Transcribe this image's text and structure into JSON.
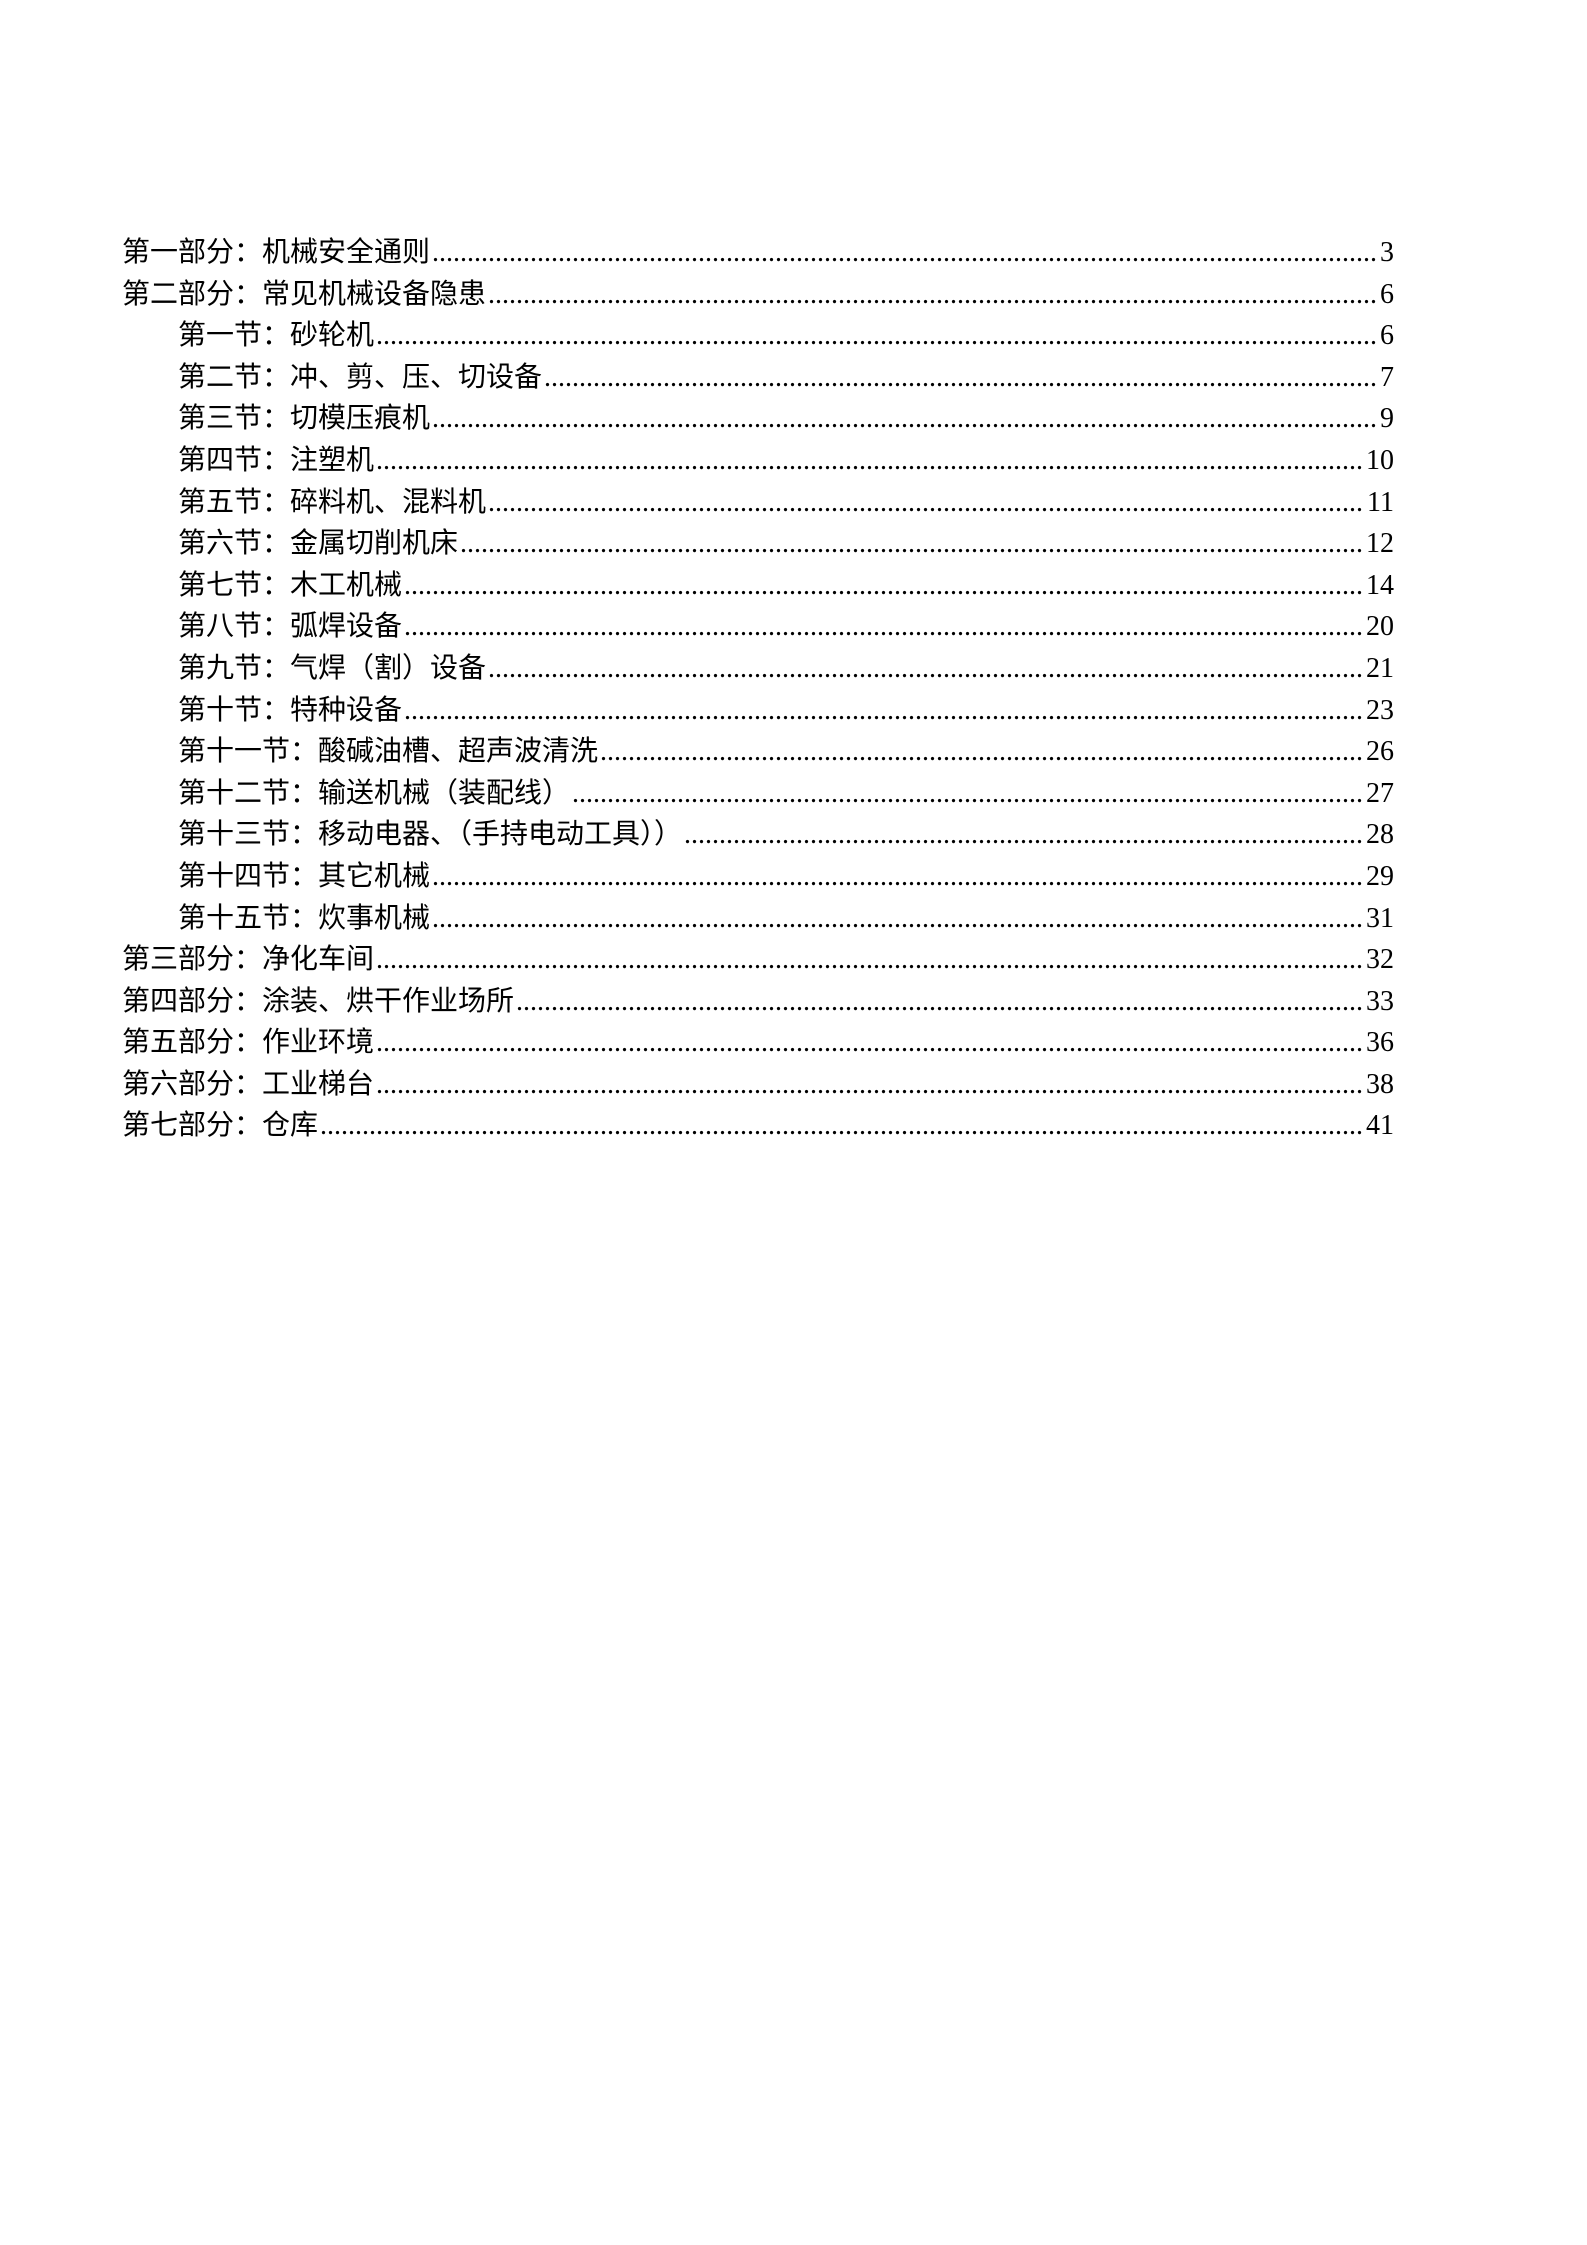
{
  "document": {
    "kind": "table-of-contents",
    "background": "#ffffff",
    "text_color": "#000000"
  },
  "toc": {
    "entries": [
      {
        "level": 1,
        "title": "第一部分：机械安全通则",
        "page": "3"
      },
      {
        "level": 1,
        "title": "第二部分：常见机械设备隐患",
        "page": "6"
      },
      {
        "level": 2,
        "title": "第一节：砂轮机",
        "page": "6"
      },
      {
        "level": 2,
        "title": "第二节：冲、剪、压、切设备",
        "page": "7"
      },
      {
        "level": 2,
        "title": "第三节：切模压痕机",
        "page": "9"
      },
      {
        "level": 2,
        "title": "第四节：注塑机",
        "page": "10"
      },
      {
        "level": 2,
        "title": "第五节：碎料机、混料机",
        "page": "11"
      },
      {
        "level": 2,
        "title": "第六节：金属切削机床",
        "page": "12"
      },
      {
        "level": 2,
        "title": "第七节：木工机械",
        "page": "14"
      },
      {
        "level": 2,
        "title": "第八节：弧焊设备",
        "page": "20"
      },
      {
        "level": 2,
        "title": "第九节：气焊（割）设备",
        "page": "21"
      },
      {
        "level": 2,
        "title": "第十节：特种设备",
        "page": "23"
      },
      {
        "level": 2,
        "title": "第十一节：酸碱油槽、超声波清洗",
        "page": "26"
      },
      {
        "level": 2,
        "title": "第十二节：输送机械（装配线）",
        "page": "27"
      },
      {
        "level": 2,
        "title": "第十三节：移动电器、（手持电动工具））",
        "page": "28"
      },
      {
        "level": 2,
        "title": "第十四节：其它机械",
        "page": "29"
      },
      {
        "level": 2,
        "title": "第十五节：炊事机械",
        "page": "31"
      },
      {
        "level": 1,
        "title": "第三部分：净化车间",
        "page": "32"
      },
      {
        "level": 1,
        "title": "第四部分：涂装、烘干作业场所",
        "page": "33"
      },
      {
        "level": 1,
        "title": "第五部分：作业环境",
        "page": "36"
      },
      {
        "level": 1,
        "title": "第六部分：工业梯台",
        "page": "38"
      },
      {
        "level": 1,
        "title": "第七部分：仓库",
        "page": "41"
      }
    ]
  }
}
